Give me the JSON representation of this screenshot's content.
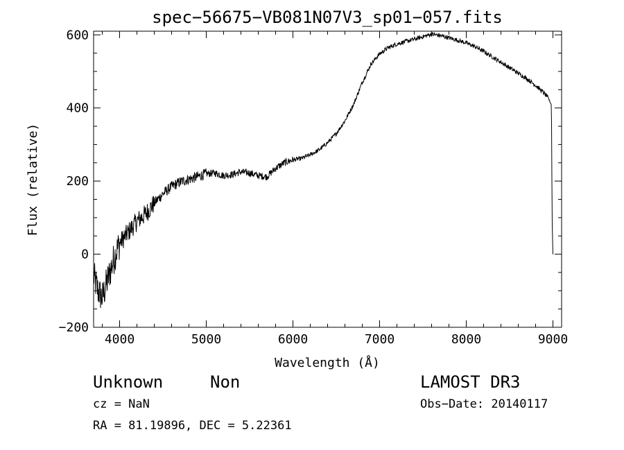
{
  "chart_data": {
    "type": "line",
    "title": "spec−56675−VB081N07V3_sp01−057.fits",
    "xlabel": "Wavelength (Å)",
    "ylabel": "Flux (relative)",
    "xlim": [
      3700,
      9100
    ],
    "ylim": [
      -200,
      610
    ],
    "x_ticks": [
      "4000",
      "5000",
      "6000",
      "7000",
      "8000",
      "9000"
    ],
    "y_ticks": [
      "−200",
      "0",
      "200",
      "400",
      "600"
    ],
    "series": [
      {
        "name": "flux",
        "x": [
          3700,
          3750,
          3800,
          3850,
          3900,
          3950,
          4000,
          4100,
          4200,
          4300,
          4400,
          4500,
          4600,
          4700,
          4800,
          4900,
          5000,
          5100,
          5200,
          5300,
          5400,
          5500,
          5600,
          5700,
          5800,
          5900,
          6000,
          6100,
          6200,
          6300,
          6400,
          6500,
          6600,
          6700,
          6800,
          6900,
          7000,
          7100,
          7200,
          7300,
          7400,
          7500,
          7600,
          7700,
          7800,
          7900,
          8000,
          8100,
          8200,
          8300,
          8400,
          8500,
          8600,
          8700,
          8800,
          8900,
          8950,
          8980,
          8985,
          8990,
          9000
        ],
        "values": [
          -60,
          -100,
          -120,
          -80,
          -40,
          0,
          30,
          60,
          90,
          110,
          140,
          165,
          185,
          198,
          205,
          212,
          220,
          222,
          215,
          218,
          225,
          222,
          215,
          212,
          235,
          250,
          258,
          262,
          272,
          285,
          305,
          330,
          365,
          410,
          470,
          520,
          548,
          565,
          575,
          582,
          588,
          595,
          602,
          598,
          592,
          585,
          578,
          568,
          555,
          540,
          525,
          510,
          495,
          480,
          462,
          440,
          425,
          410,
          350,
          100,
          0
        ]
      }
    ]
  },
  "info": {
    "object_class": "Unknown",
    "object_subclass": "Non",
    "survey": "LAMOST DR3",
    "cz": "cz = NaN",
    "obs_date": "Obs−Date: 20140117",
    "coords": "RA =  81.19896, DEC =   5.22361"
  }
}
